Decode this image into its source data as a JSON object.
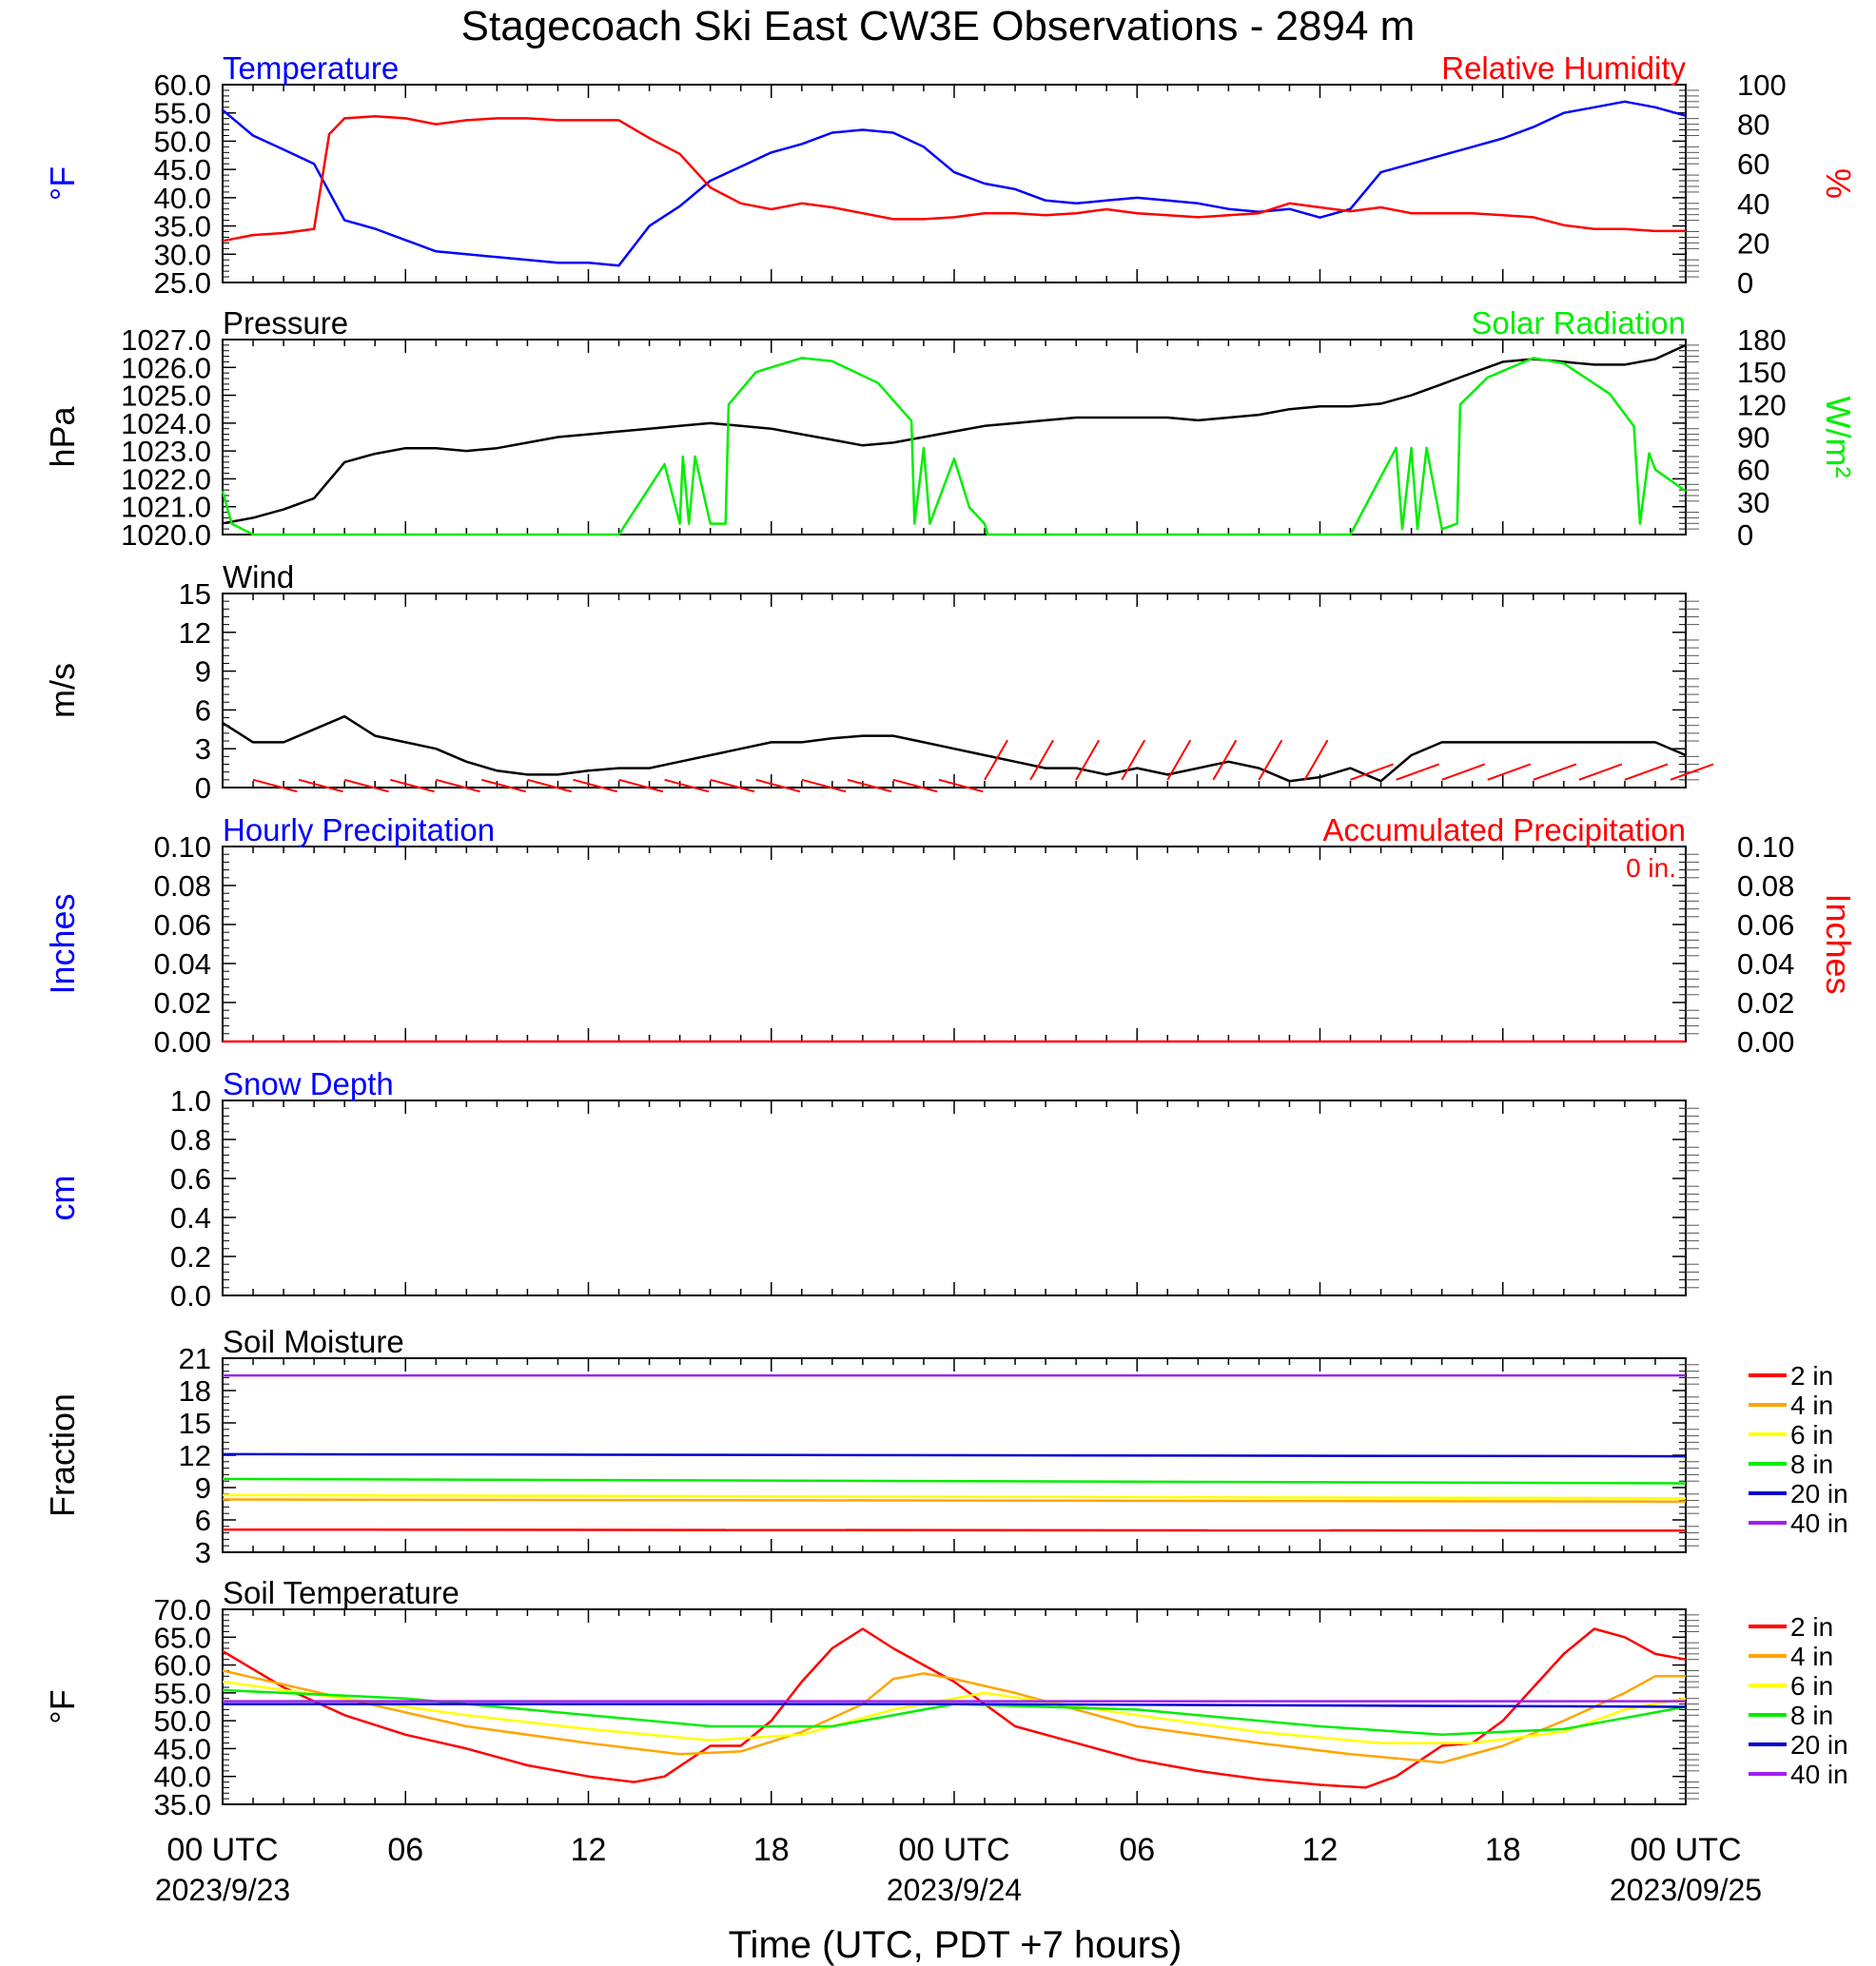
{
  "title": "Stagecoach Ski East CW3E Observations - 2894 m",
  "xaxis": {
    "ticks": [
      {
        "hour": 0,
        "label": "00 UTC",
        "date": "2023/9/23"
      },
      {
        "hour": 6,
        "label": "06",
        "date": ""
      },
      {
        "hour": 12,
        "label": "12",
        "date": ""
      },
      {
        "hour": 18,
        "label": "18",
        "date": ""
      },
      {
        "hour": 24,
        "label": "00 UTC",
        "date": "2023/9/24"
      },
      {
        "hour": 30,
        "label": "06",
        "date": ""
      },
      {
        "hour": 36,
        "label": "12",
        "date": ""
      },
      {
        "hour": 42,
        "label": "18",
        "date": ""
      },
      {
        "hour": 48,
        "label": "00 UTC",
        "date": "2023/09/25"
      }
    ],
    "label": "Time (UTC, PDT +7 hours)"
  },
  "colors": {
    "blue": "#0000ff",
    "red": "#ff0000",
    "green": "#00ee00",
    "black": "#000000",
    "orange": "#ffa500",
    "yellow": "#ffff00",
    "purple": "#a020f0",
    "darkblue": "#0000cc"
  },
  "chart_data": [
    {
      "type": "line",
      "id": "temperature_rh",
      "title_left": "Temperature",
      "title_right": "Relative Humidity",
      "ylabel_left": "°F",
      "ylabel_right": "%",
      "ylim": [
        25,
        60
      ],
      "ylim_right": [
        0,
        100
      ],
      "yticks": [
        "60.0",
        "55.0",
        "50.0",
        "45.0",
        "40.0",
        "35.0",
        "30.0",
        "25.0"
      ],
      "yticks_right": [
        "100",
        "80",
        "60",
        "40",
        "20",
        "0"
      ],
      "series": [
        {
          "name": "Temperature",
          "color": "blue",
          "axis": "left",
          "x": [
            0,
            1,
            2,
            3,
            4,
            5,
            6,
            7,
            8,
            9,
            10,
            11,
            12,
            13,
            14,
            15,
            16,
            17,
            18,
            19,
            20,
            21,
            22,
            23,
            24,
            25,
            26,
            27,
            28,
            29,
            30,
            31,
            32,
            33,
            34,
            35,
            36,
            37,
            38,
            39,
            40,
            41,
            42,
            43,
            44,
            45,
            46,
            47,
            48
          ],
          "y": [
            55.5,
            51,
            48.5,
            46,
            36,
            34.5,
            32.5,
            30.5,
            30,
            29.5,
            29,
            28.5,
            28.5,
            28,
            35,
            38.5,
            43,
            45.5,
            48,
            49.5,
            51.5,
            52,
            51.5,
            49,
            44.5,
            42.5,
            41.5,
            39.5,
            39,
            39.5,
            40,
            39.5,
            39,
            38,
            37.5,
            38,
            36.5,
            38,
            44.5,
            46,
            47.5,
            49,
            50.5,
            52.5,
            55,
            56,
            57,
            56,
            54.5
          ]
        },
        {
          "name": "Relative Humidity",
          "color": "red",
          "axis": "right",
          "x": [
            0,
            1,
            2,
            3,
            3.5,
            4,
            5,
            6,
            7,
            8,
            9,
            10,
            11,
            12,
            13,
            14,
            15,
            16,
            17,
            18,
            19,
            20,
            21,
            22,
            23,
            24,
            25,
            26,
            27,
            28,
            29,
            30,
            31,
            32,
            33,
            34,
            35,
            36,
            37,
            38,
            39,
            40,
            41,
            42,
            43,
            44,
            45,
            46,
            47,
            48
          ],
          "y": [
            21,
            24,
            25,
            27,
            75,
            83,
            84,
            83,
            80,
            82,
            83,
            83,
            82,
            82,
            82,
            73,
            65,
            48,
            40,
            37,
            40,
            38,
            35,
            32,
            32,
            33,
            35,
            35,
            34,
            35,
            37,
            35,
            34,
            33,
            34,
            35,
            40,
            38,
            36,
            38,
            35,
            35,
            35,
            34,
            33,
            29,
            27,
            27,
            26,
            26
          ]
        }
      ]
    },
    {
      "type": "line",
      "id": "pressure_solar",
      "title_left": "Pressure",
      "title_right": "Solar Radiation",
      "ylabel_left": "hPa",
      "ylabel_right": "W/m²",
      "ylim": [
        1020,
        1027
      ],
      "ylim_right": [
        0,
        180
      ],
      "yticks": [
        "1027.0",
        "1026.0",
        "1025.0",
        "1024.0",
        "1023.0",
        "1022.0",
        "1021.0",
        "1020.0"
      ],
      "yticks_right": [
        "180",
        "150",
        "120",
        "90",
        "60",
        "30",
        "0"
      ],
      "series": [
        {
          "name": "Pressure",
          "color": "black",
          "axis": "left",
          "x": [
            0,
            1,
            2,
            3,
            4,
            5,
            6,
            7,
            8,
            9,
            10,
            11,
            12,
            13,
            14,
            15,
            16,
            17,
            18,
            19,
            20,
            21,
            22,
            23,
            24,
            25,
            26,
            27,
            28,
            29,
            30,
            31,
            32,
            33,
            34,
            35,
            36,
            37,
            38,
            39,
            40,
            41,
            42,
            43,
            44,
            45,
            46,
            47,
            48
          ],
          "y": [
            1020.4,
            1020.6,
            1020.9,
            1021.3,
            1022.6,
            1022.9,
            1023.1,
            1023.1,
            1023.0,
            1023.1,
            1023.3,
            1023.5,
            1023.6,
            1023.7,
            1023.8,
            1023.9,
            1024.0,
            1023.9,
            1023.8,
            1023.6,
            1023.4,
            1023.2,
            1023.3,
            1023.5,
            1023.7,
            1023.9,
            1024.0,
            1024.1,
            1024.2,
            1024.2,
            1024.2,
            1024.2,
            1024.1,
            1024.2,
            1024.3,
            1024.5,
            1024.6,
            1024.6,
            1024.7,
            1025.0,
            1025.4,
            1025.8,
            1026.2,
            1026.3,
            1026.2,
            1026.1,
            1026.1,
            1026.3,
            1026.8
          ]
        },
        {
          "name": "Solar Radiation",
          "color": "green",
          "axis": "right",
          "x": [
            0,
            0.3,
            1,
            13,
            14.5,
            15,
            15.1,
            15.3,
            15.5,
            16,
            16.5,
            16.6,
            17.5,
            19,
            20,
            21.5,
            22.6,
            22.7,
            23,
            23.2,
            24,
            24.5,
            25,
            25.1,
            26,
            37,
            38.5,
            38.7,
            39,
            39.2,
            39.5,
            40,
            40.5,
            40.6,
            41.5,
            43,
            44,
            45.5,
            46.3,
            46.5,
            46.8,
            47,
            48
          ],
          "y": [
            40,
            10,
            0,
            0,
            65,
            10,
            72,
            10,
            72,
            10,
            10,
            120,
            150,
            163,
            160,
            140,
            105,
            10,
            80,
            10,
            70,
            25,
            10,
            0,
            0,
            0,
            80,
            5,
            80,
            5,
            80,
            5,
            10,
            120,
            145,
            163,
            158,
            130,
            100,
            10,
            75,
            60,
            40
          ]
        }
      ]
    },
    {
      "type": "line",
      "id": "wind",
      "title_left": "Wind",
      "ylabel_left": "m/s",
      "ylim": [
        0,
        15
      ],
      "yticks": [
        "15",
        "12",
        "9",
        "6",
        "3",
        "0"
      ],
      "series": [
        {
          "name": "Wind",
          "color": "black",
          "x": [
            0,
            1,
            2,
            3,
            4,
            5,
            6,
            7,
            8,
            9,
            10,
            11,
            12,
            13,
            14,
            15,
            16,
            17,
            18,
            19,
            20,
            21,
            22,
            23,
            24,
            25,
            26,
            27,
            28,
            29,
            30,
            31,
            32,
            33,
            34,
            35,
            36,
            37,
            38,
            39,
            40,
            41,
            42,
            43,
            44,
            45,
            46,
            47,
            48
          ],
          "y": [
            5,
            3.5,
            3.5,
            4.5,
            5.5,
            4,
            3.5,
            3,
            2,
            1.3,
            1,
            1,
            1.3,
            1.5,
            1.5,
            2,
            2.5,
            3,
            3.5,
            3.5,
            3.8,
            4,
            4,
            3.5,
            3,
            2.5,
            2,
            1.5,
            1.5,
            1,
            1.5,
            1,
            1.5,
            2,
            1.5,
            0.5,
            0.8,
            1.5,
            0.5,
            2.5,
            3.5,
            3.5,
            3.5,
            3.5,
            3.5,
            3.5,
            3.5,
            3.5,
            2.5
          ]
        }
      ],
      "barbs": "red"
    },
    {
      "type": "line",
      "id": "precipitation",
      "title_left": "Hourly Precipitation",
      "title_right": "Accumulated Precipitation",
      "annotation": "0 in.",
      "ylabel_left": "Inches",
      "ylabel_right": "Inches",
      "ylim": [
        0,
        0.1
      ],
      "yticks": [
        "0.10",
        "0.08",
        "0.06",
        "0.04",
        "0.02",
        "0.00"
      ],
      "yticks_right": [
        "0.10",
        "0.08",
        "0.06",
        "0.04",
        "0.02",
        "0.00"
      ],
      "series": [
        {
          "name": "Accumulated Precipitation",
          "color": "red",
          "x": [
            0,
            48
          ],
          "y": [
            0,
            0
          ]
        }
      ]
    },
    {
      "type": "line",
      "id": "snow",
      "title_left": "Snow Depth",
      "ylabel_left": "cm",
      "ylim": [
        0,
        1
      ],
      "yticks": [
        "1.0",
        "0.8",
        "0.6",
        "0.4",
        "0.2",
        "0.0"
      ],
      "series": []
    },
    {
      "type": "line",
      "id": "soil_moisture",
      "title_left": "Soil Moisture",
      "ylabel_left": "Fraction",
      "ylim": [
        3,
        21
      ],
      "yticks": [
        "21",
        "18",
        "15",
        "12",
        "9",
        "6",
        "3"
      ],
      "legend": [
        "2 in",
        "4 in",
        "6 in",
        "8 in",
        "20 in",
        "40 in"
      ],
      "series": [
        {
          "name": "2 in",
          "color": "red",
          "x": [
            0,
            48
          ],
          "y": [
            5.1,
            5.0
          ]
        },
        {
          "name": "4 in",
          "color": "orange",
          "x": [
            0,
            48
          ],
          "y": [
            7.9,
            7.7
          ]
        },
        {
          "name": "6 in",
          "color": "yellow",
          "x": [
            0,
            48
          ],
          "y": [
            8.3,
            8.0
          ]
        },
        {
          "name": "8 in",
          "color": "green",
          "x": [
            0,
            48
          ],
          "y": [
            9.8,
            9.4
          ]
        },
        {
          "name": "20 in",
          "color": "darkblue",
          "x": [
            0,
            48
          ],
          "y": [
            12.1,
            11.9
          ]
        },
        {
          "name": "40 in",
          "color": "purple",
          "x": [
            0,
            48
          ],
          "y": [
            19.4,
            19.4
          ]
        }
      ]
    },
    {
      "type": "line",
      "id": "soil_temperature",
      "title_left": "Soil Temperature",
      "ylabel_left": "°F",
      "ylim": [
        35,
        70
      ],
      "yticks": [
        "70.0",
        "65.0",
        "60.0",
        "55.0",
        "50.0",
        "45.0",
        "40.0",
        "35.0"
      ],
      "legend": [
        "2 in",
        "4 in",
        "6 in",
        "8 in",
        "20 in",
        "40 in"
      ],
      "series": [
        {
          "name": "2 in",
          "color": "red",
          "x": [
            0,
            2,
            4,
            6,
            8,
            10,
            12,
            13.5,
            14.5,
            16,
            17,
            18,
            19,
            20,
            21,
            22,
            23,
            24,
            25,
            26,
            28,
            30,
            32,
            34,
            36,
            37.5,
            38.5,
            40,
            41,
            42,
            43,
            44,
            45,
            46,
            47,
            48
          ],
          "y": [
            62.5,
            56,
            51,
            47.5,
            45,
            42,
            40,
            39,
            40,
            45.5,
            45.5,
            50,
            57,
            63,
            66.5,
            63,
            60,
            57,
            53,
            49,
            46,
            43,
            41,
            39.5,
            38.5,
            38,
            40,
            45.5,
            46,
            50,
            56,
            62,
            66.5,
            65,
            62,
            61
          ]
        },
        {
          "name": "4 in",
          "color": "orange",
          "x": [
            0,
            4,
            8,
            12,
            15,
            17,
            19,
            21,
            22,
            23,
            24,
            26,
            30,
            34,
            37,
            40,
            42,
            44,
            46,
            47,
            48
          ],
          "y": [
            59,
            54,
            49,
            46,
            44,
            44.5,
            48,
            53,
            57.5,
            58.5,
            57.5,
            55,
            49,
            46,
            44,
            42.5,
            45.5,
            50,
            55,
            58,
            58
          ]
        },
        {
          "name": "6 in",
          "color": "yellow",
          "x": [
            0,
            4,
            8,
            12,
            16,
            19,
            22,
            25,
            30,
            34,
            38,
            41,
            44,
            46,
            48
          ],
          "y": [
            57,
            54,
            51,
            48.5,
            46.5,
            47.5,
            52,
            55,
            51,
            48,
            46,
            46,
            48,
            52,
            54
          ]
        },
        {
          "name": "8 in",
          "color": "green",
          "x": [
            0,
            6,
            12,
            16,
            20,
            24,
            30,
            36,
            40,
            44,
            48
          ],
          "y": [
            55.5,
            54,
            51,
            49,
            49,
            53,
            52,
            49,
            47.5,
            48.5,
            52.5
          ]
        },
        {
          "name": "20 in",
          "color": "darkblue",
          "x": [
            0,
            24,
            48
          ],
          "y": [
            53,
            53,
            52.5
          ]
        },
        {
          "name": "40 in",
          "color": "purple",
          "x": [
            0,
            24,
            48
          ],
          "y": [
            53.5,
            53.5,
            53.5
          ]
        }
      ]
    }
  ]
}
